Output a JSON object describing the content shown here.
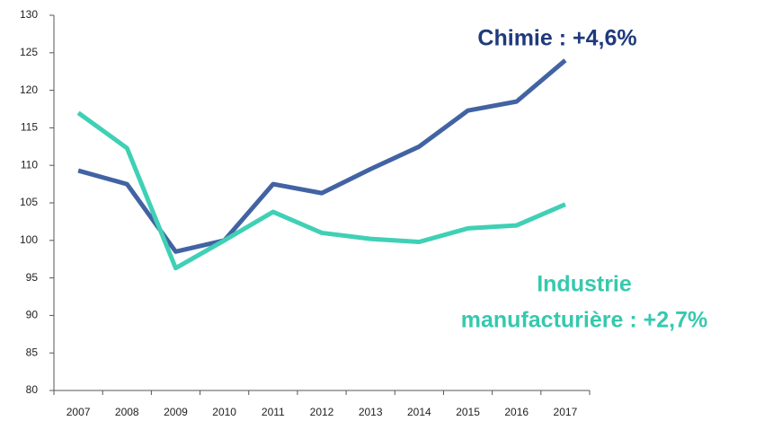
{
  "chart_data": {
    "type": "line",
    "categories": [
      "2007",
      "2008",
      "2009",
      "2010",
      "2011",
      "2012",
      "2013",
      "2014",
      "2015",
      "2016",
      "2017"
    ],
    "series": [
      {
        "color": "#4263a3",
        "values": [
          109.3,
          107.5,
          98.5,
          100,
          107.5,
          106.3,
          109.5,
          112.5,
          117.3,
          118.5,
          124
        ]
      },
      {
        "color": "#3fd0b5",
        "values": [
          117,
          112.3,
          96.3,
          100,
          103.8,
          101,
          100.2,
          99.8,
          101.6,
          102,
          104.8
        ]
      }
    ],
    "annotations": [
      {
        "lines": [
          "Chimie : +4,6%"
        ],
        "color": "#1f3a7c"
      },
      {
        "lines": [
          "Industrie",
          "manufacturière : +2,7%"
        ],
        "color": "#35c9ae"
      }
    ],
    "ylim": [
      80,
      130
    ],
    "yticks": [
      80,
      85,
      90,
      95,
      100,
      105,
      110,
      115,
      120,
      125,
      130
    ],
    "grid": false
  }
}
